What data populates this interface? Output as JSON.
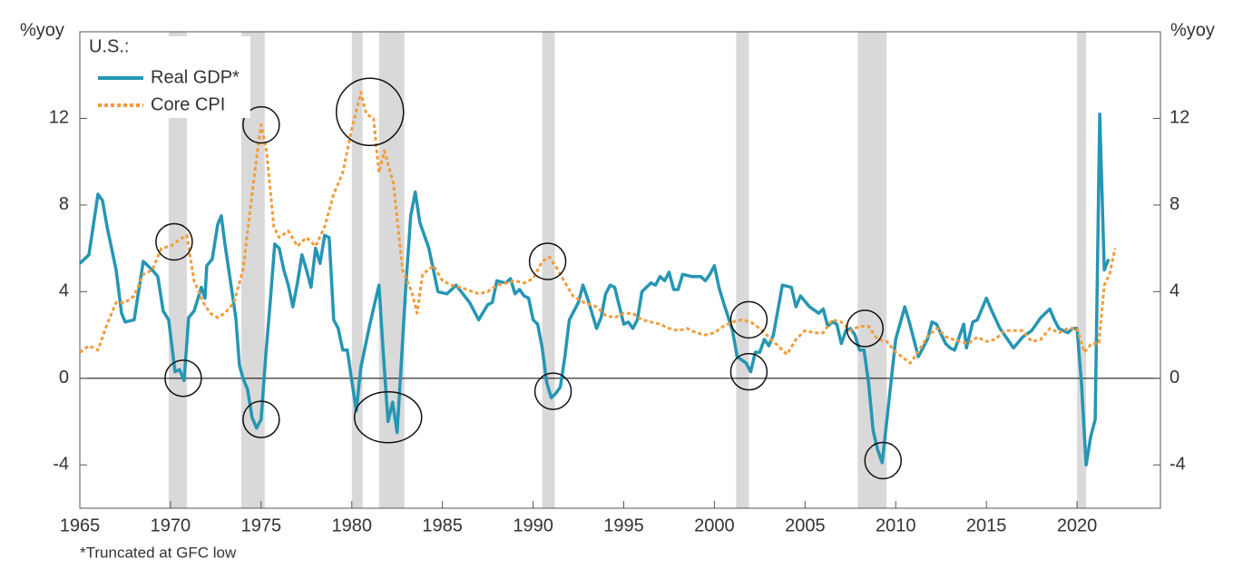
{
  "chart_data": {
    "type": "line",
    "y_label": "%yoy",
    "y2_label": "%yoy",
    "legend_title": "U.S.:",
    "footnote": "*Truncated at GFC low",
    "xlim": [
      1965,
      2024.6
    ],
    "xticks": [
      1965,
      1970,
      1975,
      1980,
      1985,
      1990,
      1995,
      2000,
      2005,
      2010,
      2015,
      2020
    ],
    "ylim": [
      -6,
      16
    ],
    "yticks": [
      -4,
      0,
      4,
      8,
      12
    ],
    "y2lim": [
      -6,
      16
    ],
    "y2ticks": [
      -4,
      0,
      4,
      8,
      12
    ],
    "recessions": [
      [
        1969.9,
        1970.9
      ],
      [
        1973.9,
        1975.2
      ],
      [
        1980.0,
        1980.6
      ],
      [
        1981.5,
        1982.9
      ],
      [
        1990.5,
        1991.2
      ],
      [
        2001.2,
        2001.9
      ],
      [
        2007.9,
        2009.5
      ],
      [
        2020.0,
        2020.5
      ]
    ],
    "series": [
      {
        "name": "Real GDP*",
        "color": "#2596b4",
        "dashed": false,
        "x": [
          1965.0,
          1965.5,
          1966.0,
          1966.25,
          1966.5,
          1967.0,
          1967.3,
          1967.5,
          1968.0,
          1968.5,
          1969.0,
          1969.3,
          1969.6,
          1969.9,
          1970.25,
          1970.5,
          1970.75,
          1971.0,
          1971.3,
          1971.7,
          1971.9,
          1972.0,
          1972.3,
          1972.6,
          1972.8,
          1973.0,
          1973.3,
          1973.6,
          1973.8,
          1974.0,
          1974.25,
          1974.5,
          1974.75,
          1975.0,
          1975.25,
          1975.5,
          1975.75,
          1976.0,
          1976.25,
          1976.5,
          1976.75,
          1977.0,
          1977.25,
          1977.5,
          1977.75,
          1978.0,
          1978.25,
          1978.5,
          1978.75,
          1979.0,
          1979.25,
          1979.5,
          1979.75,
          1980.0,
          1980.25,
          1980.5,
          1981.0,
          1981.5,
          1981.75,
          1982.0,
          1982.25,
          1982.5,
          1982.75,
          1983.0,
          1983.25,
          1983.5,
          1983.75,
          1984.25,
          1984.75,
          1985.25,
          1985.75,
          1986.5,
          1987.0,
          1987.5,
          1987.75,
          1988.0,
          1988.5,
          1988.75,
          1989.0,
          1989.25,
          1989.5,
          1989.75,
          1990.0,
          1990.25,
          1990.5,
          1990.75,
          1991.0,
          1991.25,
          1991.5,
          1991.75,
          1992.0,
          1992.5,
          1992.75,
          1993.0,
          1993.5,
          1993.75,
          1994.0,
          1994.25,
          1994.5,
          1995.0,
          1995.25,
          1995.5,
          1995.75,
          1996.0,
          1996.5,
          1996.75,
          1997.0,
          1997.25,
          1997.5,
          1997.75,
          1998.0,
          1998.25,
          1998.75,
          1999.25,
          1999.5,
          1999.75,
          2000.0,
          2000.25,
          2000.5,
          2001.0,
          2001.25,
          2001.75,
          2002.0,
          2002.25,
          2002.5,
          2002.75,
          2003.0,
          2003.25,
          2003.75,
          2004.25,
          2004.5,
          2004.75,
          2005.25,
          2005.75,
          2006.0,
          2006.25,
          2006.5,
          2006.75,
          2007.0,
          2007.25,
          2007.5,
          2007.75,
          2008.0,
          2008.25,
          2008.5,
          2008.75,
          2009.0,
          2009.25,
          2009.5,
          2010.0,
          2010.5,
          2010.75,
          2011.0,
          2011.25,
          2011.75,
          2012.0,
          2012.25,
          2012.75,
          2013.0,
          2013.25,
          2013.75,
          2013.9,
          2014.25,
          2014.5,
          2015.0,
          2015.25,
          2015.75,
          2016.25,
          2016.5,
          2017.0,
          2017.5,
          2018.0,
          2018.5,
          2018.75,
          2019.0,
          2019.5,
          2019.75,
          2020.0,
          2020.25,
          2020.5,
          2020.75,
          2021.0,
          2021.25,
          2021.5,
          2021.75
        ],
        "values": [
          5.3,
          5.7,
          8.5,
          8.2,
          7.0,
          5.0,
          3.0,
          2.6,
          2.7,
          5.4,
          5.0,
          4.7,
          3.1,
          2.7,
          0.3,
          0.4,
          -0.1,
          2.8,
          3.1,
          4.2,
          3.7,
          5.2,
          5.5,
          7.1,
          7.5,
          6.2,
          4.5,
          2.8,
          0.6,
          0.0,
          -0.5,
          -1.8,
          -2.3,
          -1.9,
          1.0,
          3.5,
          6.2,
          6.0,
          5.0,
          4.3,
          3.3,
          4.4,
          5.7,
          5.0,
          4.2,
          6.0,
          5.3,
          6.6,
          6.5,
          2.7,
          2.3,
          1.3,
          1.3,
          -0.1,
          -1.5,
          0.5,
          2.5,
          4.3,
          1.0,
          -2.0,
          -1.1,
          -2.5,
          1.0,
          4.5,
          7.5,
          8.6,
          7.2,
          6.0,
          4.0,
          3.9,
          4.3,
          3.5,
          2.7,
          3.4,
          3.5,
          4.5,
          4.4,
          4.6,
          3.9,
          4.1,
          3.8,
          3.7,
          2.7,
          2.5,
          1.4,
          -0.2,
          -0.9,
          -0.7,
          -0.4,
          1.0,
          2.7,
          3.5,
          4.3,
          3.7,
          2.3,
          2.8,
          3.9,
          4.3,
          4.2,
          2.5,
          2.6,
          2.3,
          2.7,
          4.0,
          4.4,
          4.3,
          4.7,
          4.5,
          4.9,
          4.1,
          4.1,
          4.8,
          4.7,
          4.7,
          4.5,
          4.8,
          5.2,
          4.2,
          3.5,
          2.2,
          1.0,
          0.7,
          0.3,
          1.2,
          1.2,
          1.8,
          1.5,
          2.0,
          4.3,
          4.2,
          3.3,
          3.8,
          3.3,
          3.0,
          3.2,
          2.4,
          2.6,
          2.5,
          1.6,
          2.2,
          2.3,
          2.0,
          1.3,
          1.3,
          -0.2,
          -2.4,
          -3.3,
          -3.9,
          -2.0,
          1.8,
          3.3,
          2.6,
          1.8,
          1.0,
          1.8,
          2.6,
          2.5,
          1.6,
          1.4,
          1.3,
          2.5,
          1.4,
          2.6,
          2.7,
          3.7,
          3.2,
          2.3,
          1.7,
          1.4,
          1.9,
          2.2,
          2.8,
          3.2,
          2.7,
          2.3,
          2.1,
          2.3,
          2.3,
          -0.3,
          -4.0,
          -2.7,
          -1.9,
          12.2,
          5.0,
          5.5
        ]
      },
      {
        "name": "Core CPI",
        "color": "#f39c3c",
        "dashed": true,
        "x": [
          1965.0,
          1965.5,
          1966.0,
          1966.5,
          1967.0,
          1967.5,
          1968.0,
          1968.5,
          1969.0,
          1969.5,
          1970.0,
          1970.5,
          1970.9,
          1971.3,
          1971.8,
          1972.2,
          1972.6,
          1973.0,
          1973.5,
          1974.0,
          1974.5,
          1974.8,
          1975.0,
          1975.3,
          1975.7,
          1976.0,
          1976.5,
          1977.0,
          1977.5,
          1978.0,
          1978.5,
          1979.0,
          1979.5,
          1980.0,
          1980.5,
          1980.8,
          1981.2,
          1981.5,
          1981.8,
          1982.3,
          1982.8,
          1983.3,
          1983.6,
          1983.9,
          1984.5,
          1985.0,
          1985.5,
          1986.0,
          1987.0,
          1987.5,
          1988.0,
          1988.5,
          1989.0,
          1989.5,
          1990.0,
          1990.5,
          1990.9,
          1991.3,
          1991.7,
          1992.2,
          1992.8,
          1993.5,
          1994.0,
          1994.5,
          1995.0,
          1995.5,
          1996.0,
          1996.5,
          1997.0,
          1997.5,
          1998.0,
          1998.5,
          1999.0,
          1999.5,
          2000.0,
          2000.5,
          2001.0,
          2001.5,
          2002.0,
          2002.5,
          2003.0,
          2003.5,
          2004.0,
          2004.5,
          2005.0,
          2005.5,
          2006.0,
          2006.5,
          2007.0,
          2007.5,
          2008.0,
          2008.5,
          2009.0,
          2009.5,
          2010.0,
          2010.5,
          2010.8,
          2011.3,
          2011.8,
          2012.3,
          2012.8,
          2013.5,
          2014.0,
          2014.5,
          2015.0,
          2015.5,
          2016.0,
          2016.5,
          2017.0,
          2017.5,
          2018.0,
          2018.5,
          2019.0,
          2019.5,
          2020.0,
          2020.4,
          2020.8,
          2021.2,
          2021.5,
          2021.8,
          2022.1
        ],
        "values": [
          1.2,
          1.5,
          1.3,
          2.5,
          3.5,
          3.5,
          3.8,
          4.8,
          5.0,
          6.0,
          6.1,
          6.4,
          6.6,
          4.5,
          3.5,
          3.0,
          2.8,
          3.0,
          3.5,
          5.0,
          8.5,
          10.5,
          11.7,
          10.5,
          7.0,
          6.5,
          6.8,
          6.1,
          6.5,
          6.1,
          7.0,
          8.5,
          9.5,
          11.5,
          13.2,
          12.2,
          12.0,
          9.5,
          10.5,
          9.0,
          5.0,
          4.0,
          3.0,
          4.8,
          5.2,
          4.5,
          4.3,
          4.2,
          3.9,
          4.0,
          4.3,
          4.4,
          4.5,
          4.4,
          4.6,
          5.4,
          5.6,
          5.1,
          4.5,
          3.8,
          3.5,
          3.3,
          2.9,
          2.8,
          3.0,
          3.0,
          2.7,
          2.6,
          2.5,
          2.3,
          2.2,
          2.3,
          2.1,
          2.0,
          2.1,
          2.4,
          2.6,
          2.7,
          2.6,
          2.3,
          1.9,
          1.5,
          1.1,
          1.8,
          2.2,
          2.1,
          2.1,
          2.7,
          2.6,
          2.2,
          2.4,
          2.4,
          1.8,
          1.7,
          1.2,
          0.9,
          0.7,
          1.3,
          2.0,
          2.3,
          1.9,
          1.7,
          1.6,
          1.9,
          1.7,
          1.8,
          2.2,
          2.2,
          2.2,
          1.7,
          1.8,
          2.3,
          2.1,
          2.3,
          2.3,
          1.2,
          1.6,
          1.6,
          4.3,
          4.8,
          6.0
        ]
      }
    ],
    "circles": [
      {
        "x": 1970.2,
        "y": 6.3
      },
      {
        "x": 1970.7,
        "y": 0.0
      },
      {
        "x": 1975.0,
        "y": 11.7
      },
      {
        "x": 1975.0,
        "y": -1.9
      },
      {
        "x": 1981.0,
        "y": 12.3
      },
      {
        "x": 1982.0,
        "y": -1.8
      },
      {
        "x": 1990.8,
        "y": 5.4
      },
      {
        "x": 1991.1,
        "y": -0.6
      },
      {
        "x": 2001.9,
        "y": 2.7
      },
      {
        "x": 2001.9,
        "y": 0.3
      },
      {
        "x": 2008.3,
        "y": 2.3
      },
      {
        "x": 2009.3,
        "y": -3.8
      }
    ]
  }
}
